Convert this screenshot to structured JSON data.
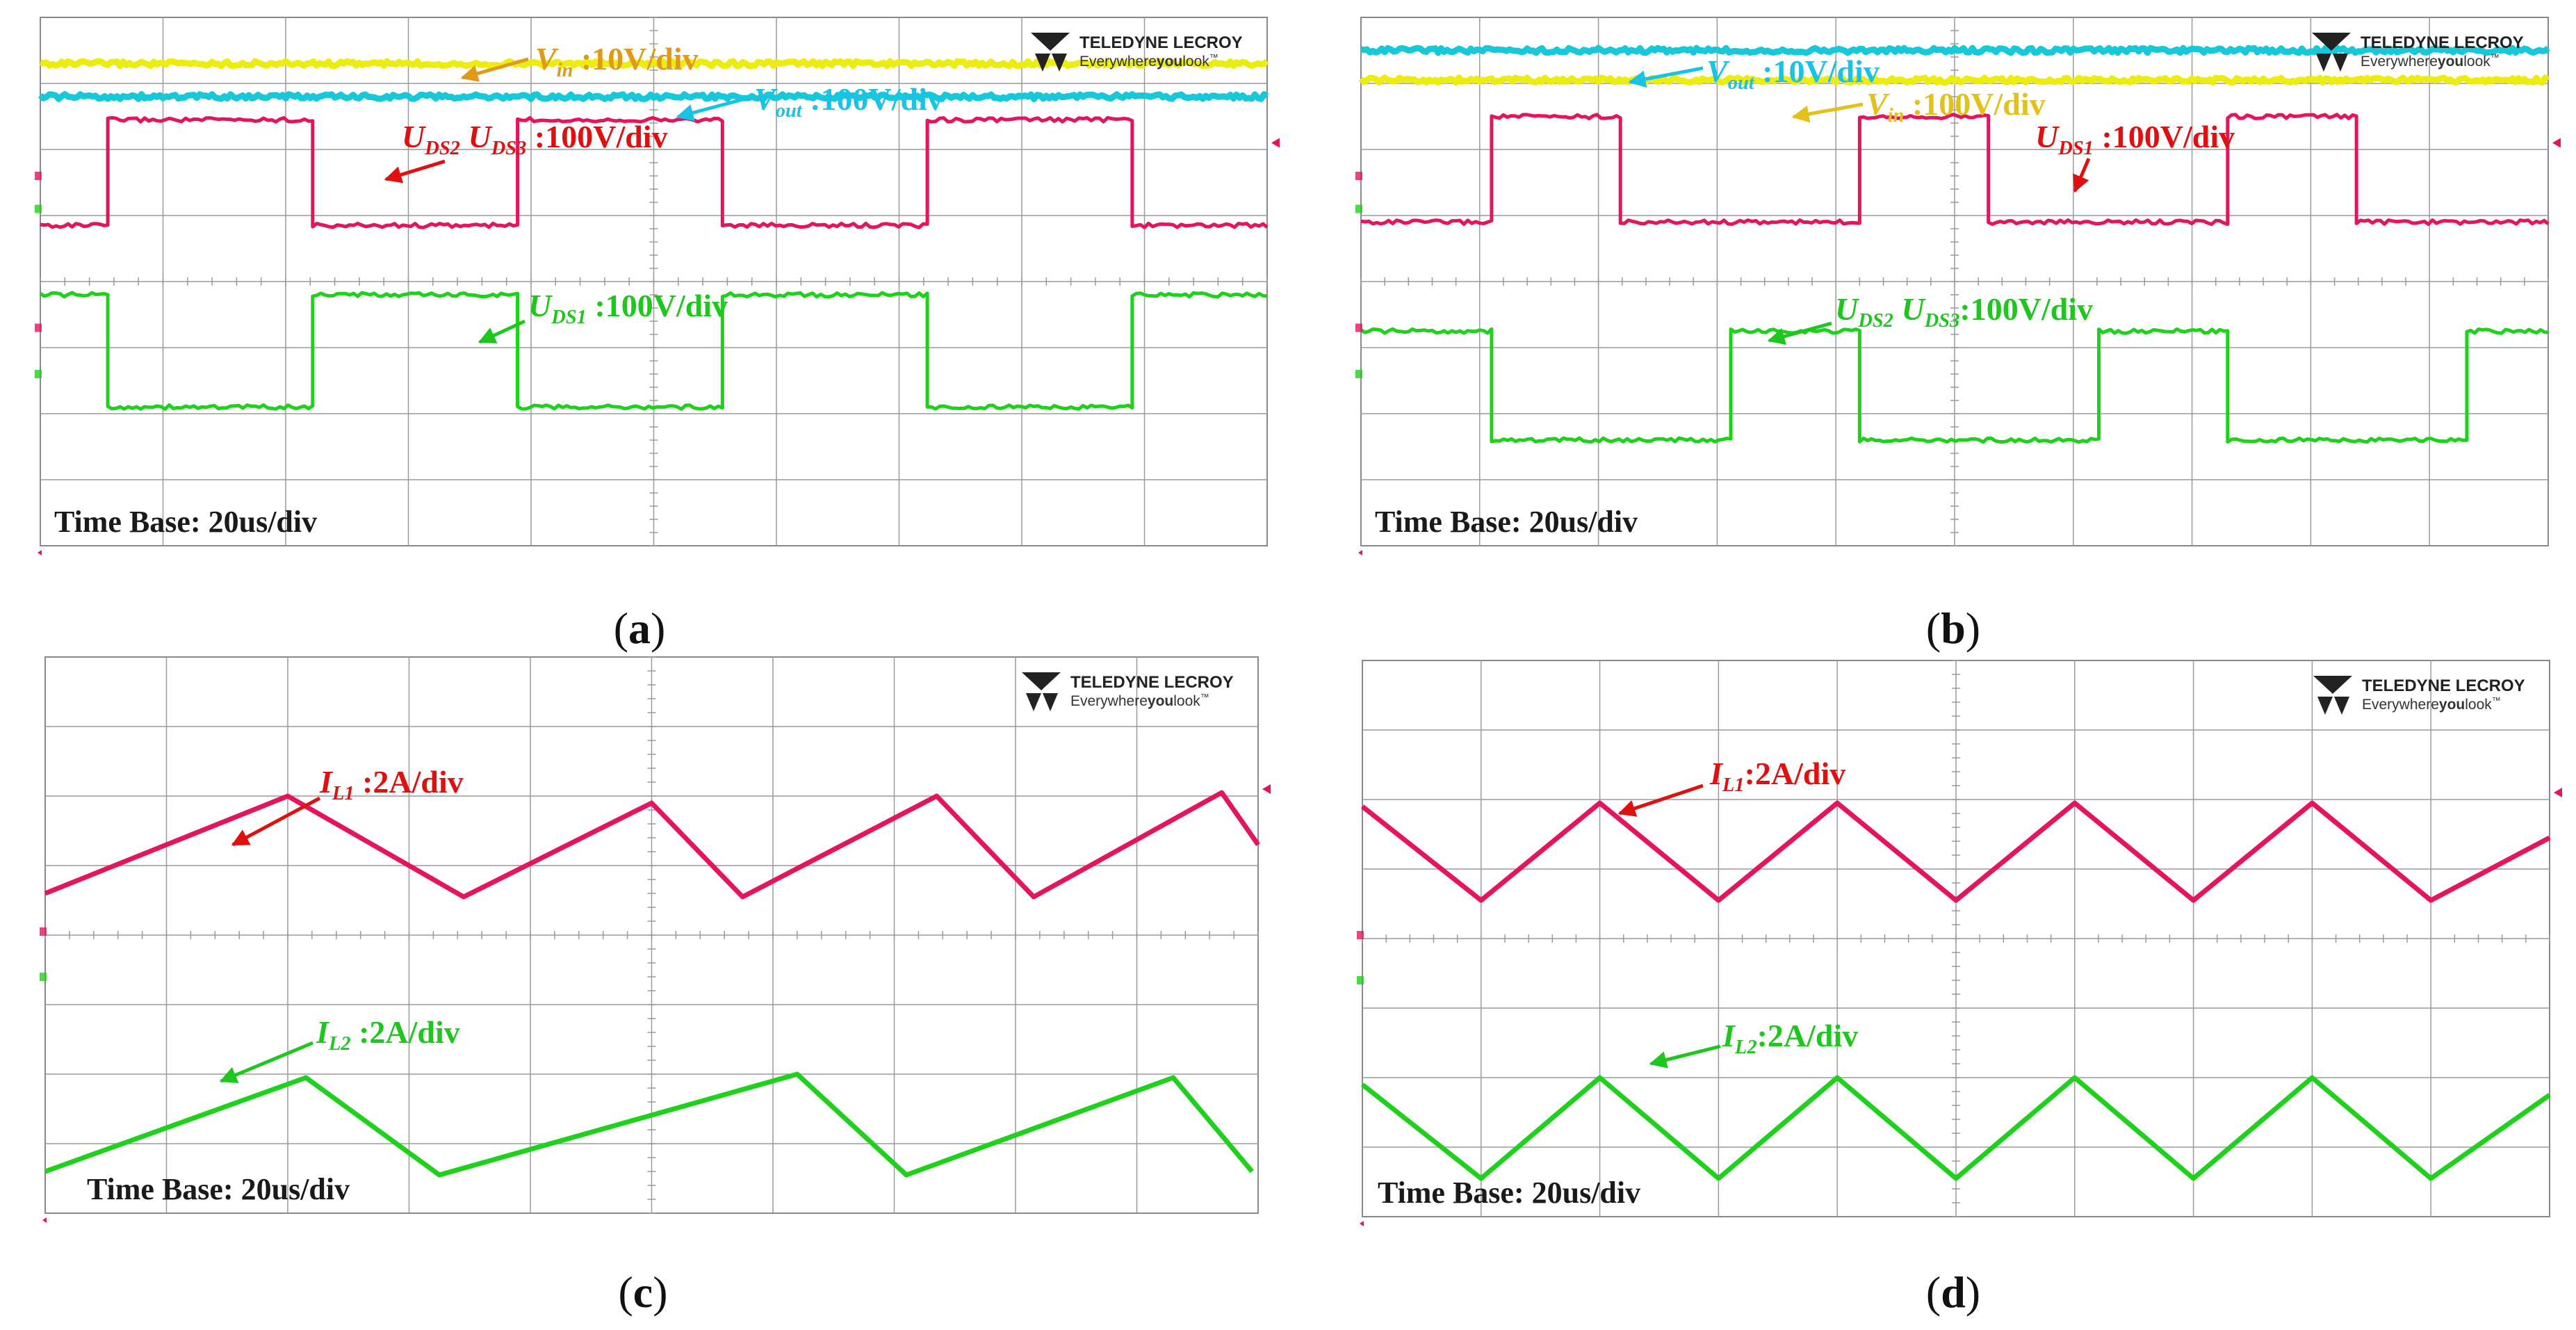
{
  "brand": {
    "name": "TELEDYNE LECROY",
    "tagline_pre": "Everywhere",
    "tagline_bold": "you",
    "tagline_post": "look",
    "tagline_mark": "™"
  },
  "colors": {
    "red": "#e4155e",
    "green": "#1fd11c",
    "yellow": "#ecec0f",
    "cyan": "#17c8d9",
    "red_label": "#e01010",
    "green_label": "#1ec61e",
    "cyan_label": "#19c3e3",
    "orange_label": "#df9a18",
    "yellow_label": "#e2c11a",
    "grid": "#9a9a9a",
    "frame": "#888888"
  },
  "chart_data": [
    {
      "id": "a",
      "type": "line",
      "caption": "a",
      "time_base": "Time Base: 20us/div",
      "grid": true,
      "xlim": [
        0,
        10
      ],
      "ylim": [
        0,
        8
      ],
      "series": [
        {
          "name": "Vin",
          "color": "yellow",
          "kind": "flat",
          "level": 7.3
        },
        {
          "name": "Vout",
          "color": "cyan",
          "kind": "flat",
          "level": 6.8
        },
        {
          "name": "UDS2 UDS3",
          "color": "red",
          "kind": "square",
          "low": 4.85,
          "high": 6.45,
          "period": 3.34,
          "duty": 0.5,
          "phase": 0.55,
          "start_high": false
        },
        {
          "name": "UDS1",
          "color": "green",
          "kind": "square",
          "low": 2.1,
          "high": 3.8,
          "period": 3.34,
          "duty": 0.5,
          "phase": 0.55,
          "start_high": true
        }
      ],
      "labels": [
        {
          "color": "orange_label",
          "main": "V",
          "sub": "in",
          "rest": " :10V/div"
        },
        {
          "color": "cyan_label",
          "main": "V",
          "sub": "out",
          "rest": " :100V/div"
        },
        {
          "color": "red_label",
          "main": "U",
          "sub": "DS2",
          "main2": " U",
          "sub2": "DS3",
          "rest": " :100V/div"
        },
        {
          "color": "green_label",
          "main": "U",
          "sub": "DS1",
          "rest": " :100V/div"
        }
      ]
    },
    {
      "id": "b",
      "type": "line",
      "caption": "b",
      "time_base": "Time Base: 20us/div",
      "grid": true,
      "xlim": [
        0,
        10
      ],
      "ylim": [
        0,
        8
      ],
      "series": [
        {
          "name": "Vout",
          "color": "cyan",
          "kind": "flat",
          "level": 7.5
        },
        {
          "name": "Vin",
          "color": "yellow",
          "kind": "flat",
          "level": 7.05
        },
        {
          "name": "UDS1",
          "color": "red",
          "kind": "square",
          "low": 4.9,
          "high": 6.5,
          "period": 3.1,
          "duty": 0.35,
          "phase": 1.1,
          "start_high": false
        },
        {
          "name": "UDS2 UDS3",
          "color": "green",
          "kind": "square",
          "low": 1.6,
          "high": 3.25,
          "period": 3.1,
          "duty": 0.35,
          "phase": 1.1,
          "start_high": true
        }
      ],
      "labels": [
        {
          "color": "cyan_label",
          "main": "V",
          "sub": "out",
          "rest": " :10V/div"
        },
        {
          "color": "yellow_label",
          "main": "V",
          "sub": "in",
          "rest": " :100V/div"
        },
        {
          "color": "red_label",
          "main": "U",
          "sub": "DS1",
          "rest": " :100V/div"
        },
        {
          "color": "green_label",
          "main": "U",
          "sub": "DS2",
          "main2": " U",
          "sub2": "DS3",
          "rest": ":100V/div"
        }
      ]
    },
    {
      "id": "c",
      "type": "line",
      "caption": "c",
      "time_base": "Time Base: 20us/div",
      "grid": true,
      "xlim": [
        0,
        10
      ],
      "ylim": [
        0,
        8
      ],
      "series": [
        {
          "name": "IL1",
          "color": "red",
          "kind": "triangle",
          "min": 4.6,
          "max": 6.0,
          "points": [
            [
              0,
              4.6
            ],
            [
              2.0,
              6.0
            ],
            [
              3.45,
              4.55
            ],
            [
              5.0,
              5.9
            ],
            [
              5.75,
              4.55
            ],
            [
              7.35,
              6.0
            ],
            [
              8.15,
              4.55
            ],
            [
              9.7,
              6.05
            ],
            [
              10,
              5.3
            ]
          ]
        },
        {
          "name": "IL2",
          "color": "green",
          "kind": "triangle",
          "min": 0.55,
          "max": 1.95,
          "points": [
            [
              0,
              0.6
            ],
            [
              2.15,
              1.95
            ],
            [
              3.25,
              0.55
            ],
            [
              6.2,
              2.0
            ],
            [
              7.1,
              0.55
            ],
            [
              9.3,
              1.95
            ],
            [
              9.95,
              0.6
            ]
          ]
        }
      ],
      "labels": [
        {
          "color": "red_label",
          "main": "I",
          "sub": "L1",
          "rest": " :2A/div"
        },
        {
          "color": "green_label",
          "main": "I",
          "sub": "L2",
          "rest": " :2A/div"
        }
      ]
    },
    {
      "id": "d",
      "type": "line",
      "caption": "d",
      "time_base": "Time Base: 20us/div",
      "grid": true,
      "xlim": [
        0,
        10
      ],
      "ylim": [
        0,
        8
      ],
      "series": [
        {
          "name": "IL1",
          "color": "red",
          "kind": "triangle",
          "min": 4.55,
          "max": 5.95,
          "points": [
            [
              0,
              5.9
            ],
            [
              1.0,
              4.55
            ],
            [
              2.0,
              5.95
            ],
            [
              3.0,
              4.55
            ],
            [
              4.0,
              5.95
            ],
            [
              5.0,
              4.55
            ],
            [
              6.0,
              5.95
            ],
            [
              7.0,
              4.55
            ],
            [
              8.0,
              5.95
            ],
            [
              9.0,
              4.55
            ],
            [
              10,
              5.45
            ]
          ]
        },
        {
          "name": "IL2",
          "color": "green",
          "kind": "triangle",
          "min": 0.55,
          "max": 2.0,
          "points": [
            [
              0,
              1.9
            ],
            [
              1.0,
              0.55
            ],
            [
              2.0,
              2.0
            ],
            [
              3.0,
              0.55
            ],
            [
              4.0,
              2.0
            ],
            [
              5.0,
              0.55
            ],
            [
              6.0,
              2.0
            ],
            [
              7.0,
              0.55
            ],
            [
              8.0,
              2.0
            ],
            [
              9.0,
              0.55
            ],
            [
              10,
              1.75
            ]
          ]
        }
      ],
      "labels": [
        {
          "color": "red_label",
          "main": "I",
          "sub": "L1",
          "rest": ":2A/div"
        },
        {
          "color": "green_label",
          "main": "I",
          "sub": "L2",
          "rest": ":2A/div"
        }
      ]
    }
  ]
}
